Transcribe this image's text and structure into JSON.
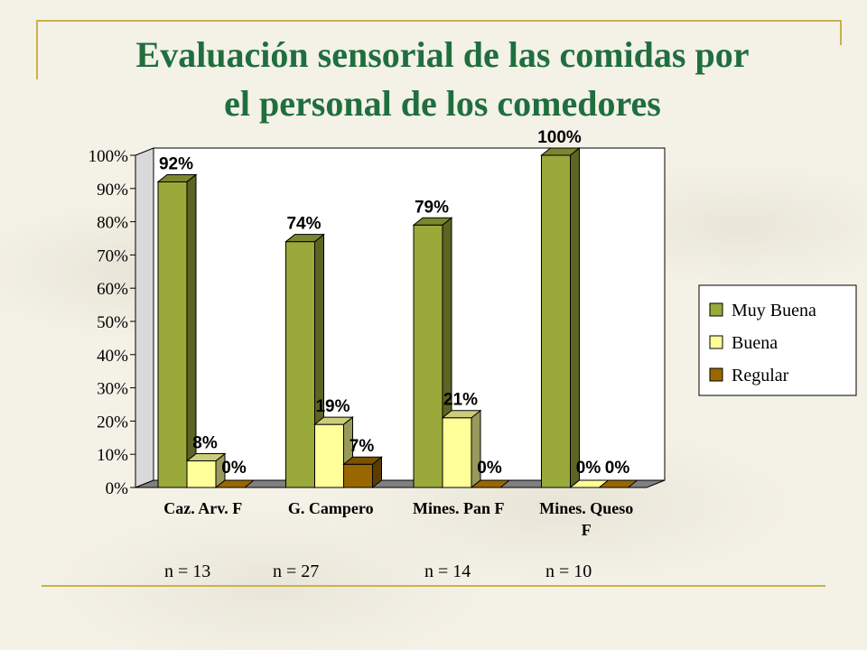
{
  "title": {
    "line1": "Evaluación sensorial de las comidas por",
    "line2": "el personal de  los comedores"
  },
  "chart_data": {
    "type": "bar",
    "categories": [
      "Caz. Arv. F",
      "G. Campero",
      "Mines. Pan F",
      "Mines. Queso F"
    ],
    "category_lines": [
      [
        "Caz. Arv. F"
      ],
      [
        "G. Campero"
      ],
      [
        "Mines. Pan F"
      ],
      [
        "Mines. Queso",
        "F"
      ]
    ],
    "series": [
      {
        "name": "Muy Buena",
        "values": [
          92,
          74,
          79,
          100
        ],
        "labels": [
          "92%",
          "74%",
          "79%",
          "100%"
        ],
        "color": "#99a93a"
      },
      {
        "name": "Buena",
        "values": [
          8,
          19,
          21,
          0
        ],
        "labels": [
          "8%",
          "19%",
          "21%",
          "0%"
        ],
        "color": "#ffff99"
      },
      {
        "name": "Regular",
        "values": [
          0,
          7,
          0,
          0
        ],
        "labels": [
          "0%",
          "7%",
          "0%",
          "0%"
        ],
        "color": "#996600"
      }
    ],
    "ylim": [
      0,
      100
    ],
    "yticks": [
      "0%",
      "10%",
      "20%",
      "30%",
      "40%",
      "50%",
      "60%",
      "70%",
      "80%",
      "90%",
      "100%"
    ],
    "grid": false,
    "legend_position": "right",
    "sample_sizes": [
      "n = 13",
      "n = 27",
      "n = 14",
      "n = 10"
    ]
  }
}
